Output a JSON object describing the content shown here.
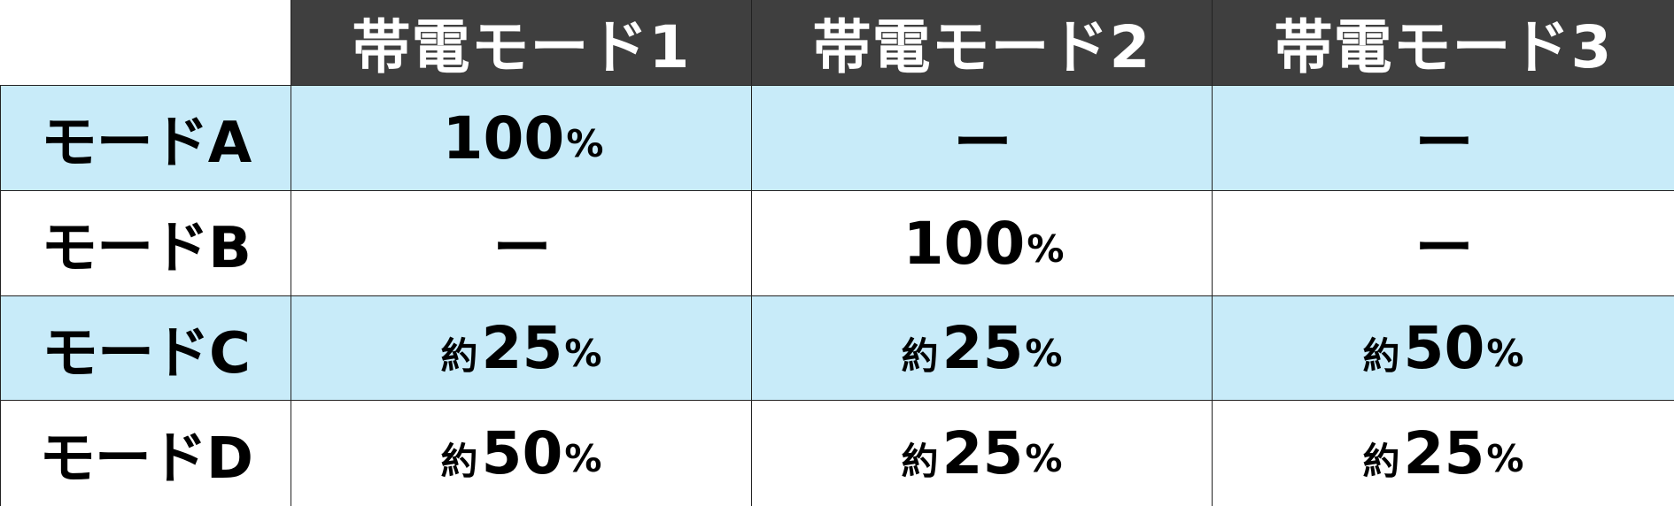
{
  "table": {
    "columns": [
      "帯電モード1",
      "帯電モード2",
      "帯電モード3"
    ],
    "rows": [
      {
        "label": "モードA",
        "cells": [
          {
            "prefix": "",
            "value": "100",
            "suffix": "%"
          },
          {
            "prefix": "",
            "value": "ー",
            "suffix": ""
          },
          {
            "prefix": "",
            "value": "ー",
            "suffix": ""
          }
        ]
      },
      {
        "label": "モードB",
        "cells": [
          {
            "prefix": "",
            "value": "ー",
            "suffix": ""
          },
          {
            "prefix": "",
            "value": "100",
            "suffix": "%"
          },
          {
            "prefix": "",
            "value": "ー",
            "suffix": ""
          }
        ]
      },
      {
        "label": "モードC",
        "cells": [
          {
            "prefix": "約",
            "value": "25",
            "suffix": "%"
          },
          {
            "prefix": "約",
            "value": "25",
            "suffix": "%"
          },
          {
            "prefix": "約",
            "value": "50",
            "suffix": "%"
          }
        ]
      },
      {
        "label": "モードD",
        "cells": [
          {
            "prefix": "約",
            "value": "50",
            "suffix": "%"
          },
          {
            "prefix": "約",
            "value": "25",
            "suffix": "%"
          },
          {
            "prefix": "約",
            "value": "25",
            "suffix": "%"
          }
        ]
      }
    ]
  },
  "colors": {
    "header_bg": "#3f3f3f",
    "header_text": "#ffffff",
    "row_blue": "#c8ebf9",
    "row_white": "#ffffff",
    "border": "#222222"
  }
}
